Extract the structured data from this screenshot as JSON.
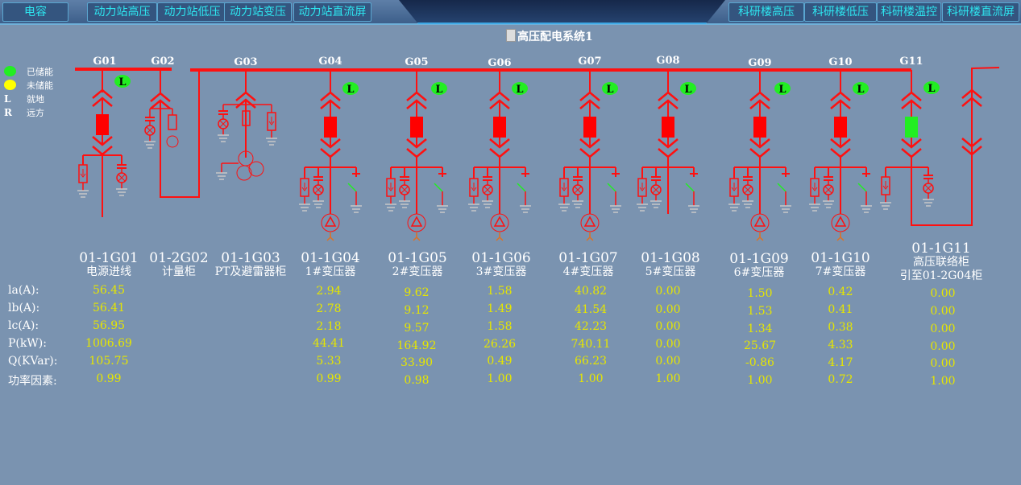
{
  "nav": {
    "left": [
      "电容",
      "动力站高压",
      "动力站低压",
      "动力站变压",
      "动力站直流屏"
    ],
    "right": [
      "科研楼高压",
      "科研楼低压",
      "科研楼温控",
      "科研楼直流屏"
    ]
  },
  "title": "高压配电系统1",
  "legend": [
    {
      "kind": "dot",
      "color": "#22ee22",
      "label": "已储能"
    },
    {
      "kind": "dot",
      "color": "#ffff00",
      "label": "未储能"
    },
    {
      "kind": "letter",
      "letter": "L",
      "label": "就地"
    },
    {
      "kind": "letter",
      "letter": "R",
      "label": "远方"
    }
  ],
  "row_labels": [
    "la(A):",
    "lb(A):",
    "lc(A):",
    "P(kW):",
    "Q(KVar):",
    "功率因素:"
  ],
  "colors": {
    "line": "#ff1010",
    "closed_breaker": "#ff0000",
    "open_breaker": "#22ee22",
    "local_badge": "#22ee22",
    "value": "#e6e600"
  },
  "feeders": [
    {
      "tag": "G01",
      "code": "01-1G01",
      "name": [
        "电源进线"
      ],
      "mode": "L",
      "breaker": "closed",
      "values": [
        "56.45",
        "56.41",
        "56.95",
        "1006.69",
        "105.75",
        "0.99"
      ]
    },
    {
      "tag": "G02",
      "code": "01-2G02",
      "name": [
        "计量柜"
      ],
      "values": []
    },
    {
      "tag": "G03",
      "code": "01-1G03",
      "name": [
        "PT及避雷器柜"
      ],
      "values": []
    },
    {
      "tag": "G04",
      "code": "01-1G04",
      "name": [
        "1#变压器"
      ],
      "mode": "L",
      "breaker": "closed",
      "values": [
        "2.94",
        "2.78",
        "2.18",
        "44.41",
        "5.33",
        "0.99"
      ]
    },
    {
      "tag": "G05",
      "code": "01-1G05",
      "name": [
        "2#变压器"
      ],
      "mode": "L",
      "breaker": "closed",
      "values": [
        "9.62",
        "9.12",
        "9.57",
        "164.92",
        "33.90",
        "0.98"
      ]
    },
    {
      "tag": "G06",
      "code": "01-1G06",
      "name": [
        "3#变压器"
      ],
      "mode": "L",
      "breaker": "closed",
      "values": [
        "1.58",
        "1.49",
        "1.58",
        "26.26",
        "0.49",
        "1.00"
      ]
    },
    {
      "tag": "G07",
      "code": "01-1G07",
      "name": [
        "4#变压器"
      ],
      "mode": "L",
      "breaker": "closed",
      "values": [
        "40.82",
        "41.54",
        "42.23",
        "740.11",
        "66.23",
        "1.00"
      ]
    },
    {
      "tag": "G08",
      "code": "01-1G08",
      "name": [
        "5#变压器"
      ],
      "mode": "L",
      "breaker": "closed",
      "values": [
        "0.00",
        "0.00",
        "0.00",
        "0.00",
        "0.00",
        "1.00"
      ]
    },
    {
      "tag": "G09",
      "code": "01-1G09",
      "name": [
        "6#变压器"
      ],
      "mode": "L",
      "breaker": "closed",
      "values": [
        "1.50",
        "1.53",
        "1.34",
        "25.67",
        "-0.86",
        "1.00"
      ]
    },
    {
      "tag": "G10",
      "code": "01-1G10",
      "name": [
        "7#变压器"
      ],
      "mode": "L",
      "breaker": "closed",
      "values": [
        "0.42",
        "0.41",
        "0.38",
        "4.33",
        "4.17",
        "0.72"
      ]
    },
    {
      "tag": "G11",
      "code": "01-1G11",
      "name": [
        "高压联络柜",
        "引至01-2G04柜"
      ],
      "mode": "L",
      "breaker": "open",
      "values": [
        "0.00",
        "0.00",
        "0.00",
        "0.00",
        "0.00",
        "1.00"
      ]
    }
  ]
}
